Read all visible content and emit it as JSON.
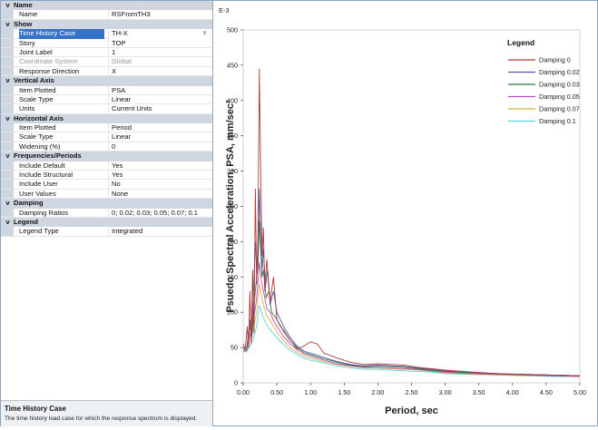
{
  "properties": {
    "groups": [
      {
        "label": "Name",
        "rows": [
          {
            "name": "Name",
            "value": "RSFromTH3"
          }
        ]
      },
      {
        "label": "Show",
        "rows": [
          {
            "name": "Time History Case",
            "value": "TH-X",
            "selected": true,
            "dropdown": true
          },
          {
            "name": "Story",
            "value": "TOP"
          },
          {
            "name": "Joint Label",
            "value": "1"
          },
          {
            "name": "Coordinate System",
            "value": "Global",
            "disabled": true
          },
          {
            "name": "Response Direction",
            "value": "X"
          }
        ]
      },
      {
        "label": "Vertical Axis",
        "rows": [
          {
            "name": "Item Plotted",
            "value": "PSA"
          },
          {
            "name": "Scale Type",
            "value": "Linear"
          },
          {
            "name": "Units",
            "value": "Current Units"
          }
        ]
      },
      {
        "label": "Horizontal Axis",
        "rows": [
          {
            "name": "Item Plotted",
            "value": "Period"
          },
          {
            "name": "Scale Type",
            "value": "Linear"
          },
          {
            "name": "Widening (%)",
            "value": "0"
          }
        ]
      },
      {
        "label": "Frequencies/Periods",
        "rows": [
          {
            "name": "Include Default",
            "value": "Yes"
          },
          {
            "name": "Include Structural",
            "value": "Yes"
          },
          {
            "name": "Include User",
            "value": "No"
          },
          {
            "name": "User Values",
            "value": "None"
          }
        ]
      },
      {
        "label": "Damping",
        "rows": [
          {
            "name": "Damping Ratios",
            "value": "0; 0.02; 0.03; 0.05; 0.07; 0.1"
          }
        ]
      },
      {
        "label": "Legend",
        "rows": [
          {
            "name": "Legend Type",
            "value": "Integrated"
          }
        ]
      }
    ],
    "collapse_glyph": "v",
    "dropdown_glyph": "v"
  },
  "help": {
    "title": "Time History Case",
    "description": "The time history load case for which the response spectrum is displayed."
  },
  "chart_data": {
    "type": "line",
    "scale_label": "E-3",
    "xlabel": "Period, sec",
    "ylabel": "Psuedo Spectral Acceleration, PSA, mm/sec²",
    "xlim": [
      0,
      5
    ],
    "ylim": [
      0,
      500
    ],
    "xticks": [
      "0.00",
      "0.50",
      "1.00",
      "1.50",
      "2.00",
      "2.50",
      "3.00",
      "3.50",
      "4.00",
      "4.50",
      "5.00"
    ],
    "yticks": [
      "0",
      "50",
      "100",
      "150",
      "200",
      "250",
      "300",
      "350",
      "400",
      "450",
      "500"
    ],
    "legend_title": "Legend",
    "legend_position": "top-right",
    "series": [
      {
        "name": "Damping 0",
        "color": "#b03a3a",
        "points": [
          [
            0,
            55
          ],
          [
            0.03,
            48
          ],
          [
            0.06,
            80
          ],
          [
            0.08,
            50
          ],
          [
            0.1,
            130
          ],
          [
            0.12,
            55
          ],
          [
            0.14,
            160
          ],
          [
            0.16,
            70
          ],
          [
            0.18,
            275
          ],
          [
            0.2,
            140
          ],
          [
            0.22,
            210
          ],
          [
            0.24,
            445
          ],
          [
            0.26,
            300
          ],
          [
            0.28,
            180
          ],
          [
            0.3,
            220
          ],
          [
            0.32,
            130
          ],
          [
            0.35,
            175
          ],
          [
            0.4,
            115
          ],
          [
            0.45,
            150
          ],
          [
            0.5,
            90
          ],
          [
            0.55,
            80
          ],
          [
            0.6,
            75
          ],
          [
            0.7,
            60
          ],
          [
            0.8,
            48
          ],
          [
            0.9,
            52
          ],
          [
            1.0,
            58
          ],
          [
            1.1,
            55
          ],
          [
            1.2,
            42
          ],
          [
            1.4,
            35
          ],
          [
            1.6,
            29
          ],
          [
            1.8,
            26
          ],
          [
            2.0,
            27
          ],
          [
            2.2,
            26
          ],
          [
            2.4,
            25
          ],
          [
            2.6,
            22
          ],
          [
            2.8,
            20
          ],
          [
            3.0,
            18
          ],
          [
            3.3,
            16
          ],
          [
            3.6,
            14
          ],
          [
            4.0,
            12
          ],
          [
            4.5,
            11
          ],
          [
            5.0,
            10
          ]
        ]
      },
      {
        "name": "Damping 0.02",
        "color": "#4a5aa8",
        "points": [
          [
            0,
            50
          ],
          [
            0.05,
            48
          ],
          [
            0.08,
            70
          ],
          [
            0.1,
            90
          ],
          [
            0.12,
            60
          ],
          [
            0.15,
            120
          ],
          [
            0.18,
            200
          ],
          [
            0.2,
            160
          ],
          [
            0.22,
            185
          ],
          [
            0.24,
            275
          ],
          [
            0.26,
            210
          ],
          [
            0.28,
            160
          ],
          [
            0.3,
            190
          ],
          [
            0.33,
            135
          ],
          [
            0.36,
            160
          ],
          [
            0.4,
            110
          ],
          [
            0.45,
            130
          ],
          [
            0.5,
            100
          ],
          [
            0.6,
            80
          ],
          [
            0.7,
            64
          ],
          [
            0.8,
            52
          ],
          [
            0.9,
            45
          ],
          [
            1.0,
            42
          ],
          [
            1.2,
            36
          ],
          [
            1.4,
            30
          ],
          [
            1.6,
            26
          ],
          [
            1.8,
            24
          ],
          [
            2.0,
            25
          ],
          [
            2.2,
            24
          ],
          [
            2.4,
            23
          ],
          [
            2.6,
            21
          ],
          [
            2.8,
            19
          ],
          [
            3.0,
            17
          ],
          [
            3.4,
            15
          ],
          [
            3.8,
            13
          ],
          [
            4.2,
            12
          ],
          [
            4.6,
            11
          ],
          [
            5.0,
            10
          ]
        ]
      },
      {
        "name": "Damping 0.03",
        "color": "#2f7a3a",
        "points": [
          [
            0,
            48
          ],
          [
            0.05,
            47
          ],
          [
            0.1,
            80
          ],
          [
            0.13,
            65
          ],
          [
            0.16,
            110
          ],
          [
            0.2,
            150
          ],
          [
            0.22,
            165
          ],
          [
            0.24,
            230
          ],
          [
            0.26,
            190
          ],
          [
            0.28,
            150
          ],
          [
            0.3,
            160
          ],
          [
            0.34,
            120
          ],
          [
            0.38,
            130
          ],
          [
            0.42,
            100
          ],
          [
            0.5,
            90
          ],
          [
            0.6,
            73
          ],
          [
            0.7,
            60
          ],
          [
            0.8,
            50
          ],
          [
            0.9,
            43
          ],
          [
            1.0,
            40
          ],
          [
            1.2,
            34
          ],
          [
            1.4,
            29
          ],
          [
            1.6,
            25
          ],
          [
            1.8,
            23
          ],
          [
            2.0,
            24
          ],
          [
            2.2,
            23
          ],
          [
            2.4,
            22
          ],
          [
            2.6,
            20
          ],
          [
            2.8,
            18
          ],
          [
            3.0,
            16
          ],
          [
            3.4,
            14
          ],
          [
            3.8,
            13
          ],
          [
            4.2,
            12
          ],
          [
            4.6,
            11
          ],
          [
            5.0,
            10
          ]
        ]
      },
      {
        "name": "Damping 0.05",
        "color": "#b84cb8",
        "points": [
          [
            0,
            46
          ],
          [
            0.05,
            46
          ],
          [
            0.1,
            68
          ],
          [
            0.15,
            85
          ],
          [
            0.2,
            120
          ],
          [
            0.24,
            170
          ],
          [
            0.27,
            145
          ],
          [
            0.3,
            130
          ],
          [
            0.35,
            105
          ],
          [
            0.4,
            100
          ],
          [
            0.45,
            88
          ],
          [
            0.5,
            80
          ],
          [
            0.6,
            66
          ],
          [
            0.7,
            55
          ],
          [
            0.8,
            47
          ],
          [
            0.9,
            41
          ],
          [
            1.0,
            38
          ],
          [
            1.2,
            32
          ],
          [
            1.4,
            27
          ],
          [
            1.6,
            24
          ],
          [
            1.8,
            22
          ],
          [
            2.0,
            22
          ],
          [
            2.2,
            21
          ],
          [
            2.4,
            20
          ],
          [
            2.6,
            19
          ],
          [
            2.8,
            17
          ],
          [
            3.0,
            15
          ],
          [
            3.4,
            13
          ],
          [
            3.8,
            12
          ],
          [
            4.2,
            11
          ],
          [
            4.6,
            10
          ],
          [
            5.0,
            9
          ]
        ]
      },
      {
        "name": "Damping 0.07",
        "color": "#d8b048",
        "points": [
          [
            0,
            45
          ],
          [
            0.05,
            45
          ],
          [
            0.1,
            60
          ],
          [
            0.15,
            75
          ],
          [
            0.2,
            100
          ],
          [
            0.24,
            140
          ],
          [
            0.27,
            125
          ],
          [
            0.3,
            110
          ],
          [
            0.35,
            95
          ],
          [
            0.4,
            88
          ],
          [
            0.5,
            72
          ],
          [
            0.6,
            60
          ],
          [
            0.7,
            50
          ],
          [
            0.8,
            43
          ],
          [
            0.9,
            38
          ],
          [
            1.0,
            35
          ],
          [
            1.2,
            30
          ],
          [
            1.4,
            26
          ],
          [
            1.6,
            23
          ],
          [
            1.8,
            21
          ],
          [
            2.0,
            21
          ],
          [
            2.2,
            20
          ],
          [
            2.4,
            19
          ],
          [
            2.6,
            18
          ],
          [
            2.8,
            16
          ],
          [
            3.0,
            14
          ],
          [
            3.4,
            12
          ],
          [
            3.8,
            11
          ],
          [
            4.2,
            10
          ],
          [
            4.6,
            10
          ],
          [
            5.0,
            9
          ]
        ]
      },
      {
        "name": "Damping 0.1",
        "color": "#5ad4e0",
        "points": [
          [
            0,
            44
          ],
          [
            0.05,
            44
          ],
          [
            0.1,
            52
          ],
          [
            0.15,
            62
          ],
          [
            0.2,
            80
          ],
          [
            0.24,
            110
          ],
          [
            0.27,
            100
          ],
          [
            0.3,
            92
          ],
          [
            0.35,
            82
          ],
          [
            0.4,
            75
          ],
          [
            0.5,
            64
          ],
          [
            0.6,
            54
          ],
          [
            0.7,
            46
          ],
          [
            0.8,
            40
          ],
          [
            0.9,
            35
          ],
          [
            1.0,
            32
          ],
          [
            1.2,
            28
          ],
          [
            1.4,
            24
          ],
          [
            1.6,
            21
          ],
          [
            1.8,
            19
          ],
          [
            2.0,
            19
          ],
          [
            2.2,
            18
          ],
          [
            2.4,
            17
          ],
          [
            2.6,
            16
          ],
          [
            2.8,
            15
          ],
          [
            3.0,
            13
          ],
          [
            3.4,
            12
          ],
          [
            3.8,
            11
          ],
          [
            4.2,
            10
          ],
          [
            4.6,
            9
          ],
          [
            5.0,
            9
          ]
        ]
      }
    ]
  }
}
